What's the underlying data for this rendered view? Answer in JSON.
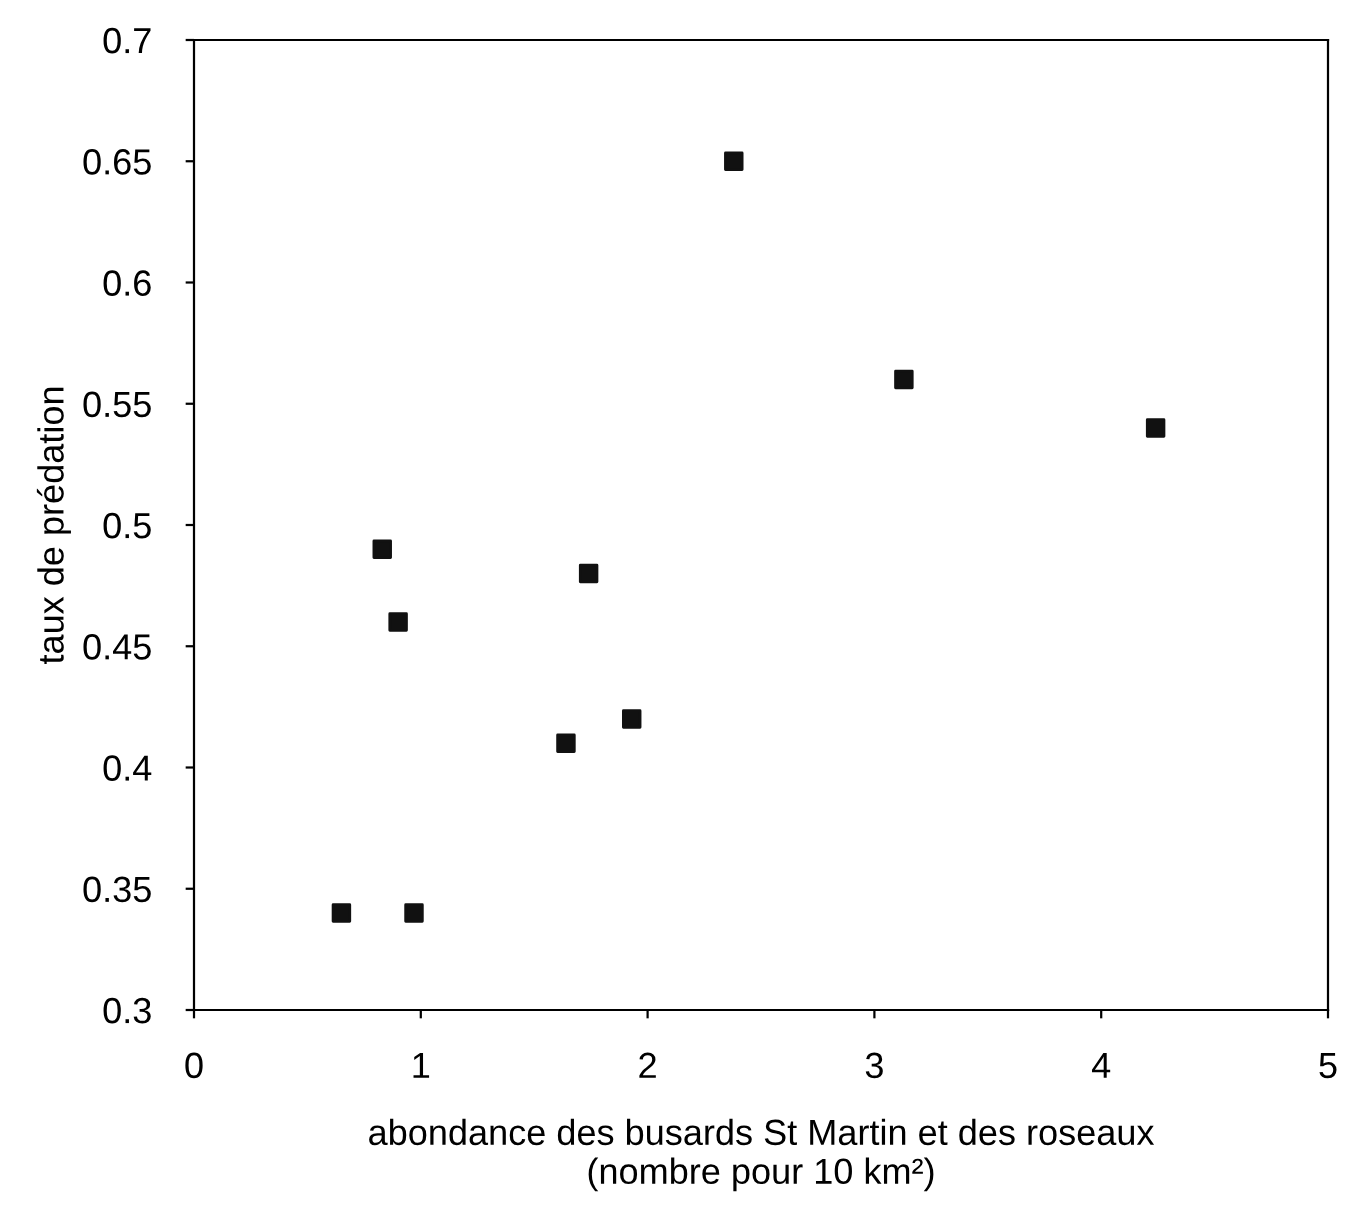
{
  "chart_data": {
    "type": "scatter",
    "xlabel": "abondance des busards St Martin et des roseaux\n(nombre pour 10 km²)",
    "ylabel": "taux de prédation",
    "x": [
      0.65,
      0.97,
      0.83,
      0.9,
      1.64,
      1.74,
      1.93,
      2.38,
      3.13,
      4.24
    ],
    "values": [
      0.34,
      0.34,
      0.49,
      0.46,
      0.41,
      0.48,
      0.42,
      0.65,
      0.56,
      0.54
    ],
    "color": "#111111",
    "marker": "square",
    "xlim": [
      0,
      5
    ],
    "xticks": [
      0,
      1,
      2,
      3,
      4,
      5
    ],
    "ylim": [
      0.3,
      0.7
    ],
    "yticks": [
      0.3,
      0.35,
      0.4,
      0.45,
      0.5,
      0.55,
      0.6,
      0.65,
      0.7
    ],
    "grid": false,
    "legend": false
  }
}
